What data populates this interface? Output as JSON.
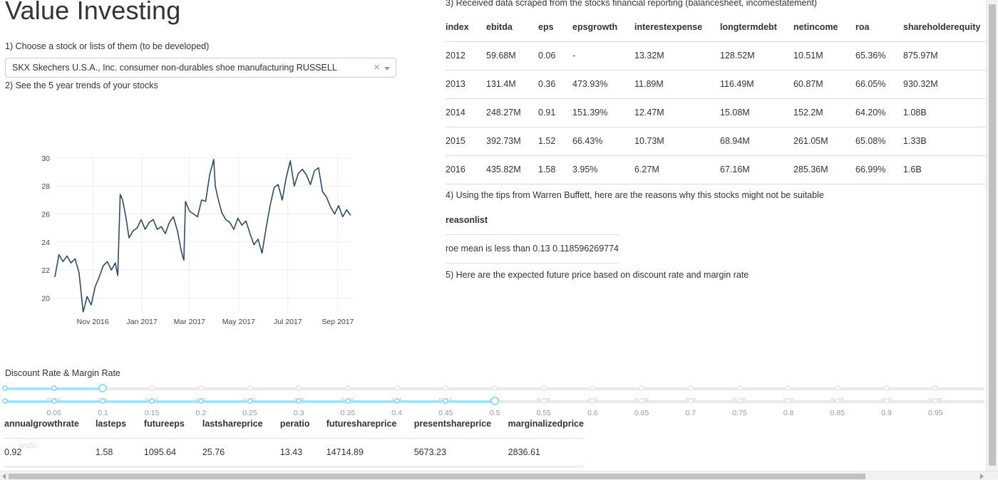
{
  "page": {
    "title": "Value Investing",
    "step1": "1) Choose a stock or lists of them (to be developed)",
    "step2": "2) See the 5 year trends of your stocks",
    "step3": "3) Received data scraped from the stocks financial reporting (balancesheet, incomestatement)",
    "step4": "4) Using the tips from Warren Buffett, here are the reasons why this stocks might not be suitable",
    "step5": "5) Here are the expected future price based on discount rate and margin rate",
    "slider_label": "Discount Rate & Margin Rate",
    "undo_label": "undo"
  },
  "dropdown": {
    "selected": "SKX Skechers U.S.A., Inc. consumer non-durables shoe manufacturing RUSSELL",
    "clear_symbol": "×"
  },
  "chart_data": {
    "type": "line",
    "title": "",
    "xlabel": "",
    "ylabel": "",
    "ylim": [
      19,
      30.3
    ],
    "yticks": [
      20,
      22,
      24,
      26,
      28,
      30
    ],
    "xticks": [
      "Nov 2016",
      "Jan 2017",
      "Mar 2017",
      "May 2017",
      "Jul 2017",
      "Sep 2017"
    ],
    "xtick_dates": [
      "2016-11-01",
      "2017-01-01",
      "2017-03-01",
      "2017-05-01",
      "2017-07-01",
      "2017-09-01"
    ],
    "grid": true,
    "line_color": "#2f4b66",
    "series": [
      {
        "x": [
          "2016-09-15",
          "2016-09-20",
          "2016-09-25",
          "2016-09-30",
          "2016-10-05",
          "2016-10-10",
          "2016-10-15",
          "2016-10-20",
          "2016-10-22",
          "2016-10-25",
          "2016-10-30",
          "2016-11-04",
          "2016-11-09",
          "2016-11-14",
          "2016-11-19",
          "2016-11-24",
          "2016-11-29",
          "2016-12-02",
          "2016-12-05",
          "2016-12-08",
          "2016-12-12",
          "2016-12-16",
          "2016-12-21",
          "2016-12-26",
          "2016-12-31",
          "2017-01-05",
          "2017-01-10",
          "2017-01-15",
          "2017-01-20",
          "2017-01-25",
          "2017-01-30",
          "2017-02-04",
          "2017-02-09",
          "2017-02-14",
          "2017-02-19",
          "2017-02-22",
          "2017-02-24",
          "2017-03-01",
          "2017-03-06",
          "2017-03-11",
          "2017-03-16",
          "2017-03-21",
          "2017-03-26",
          "2017-03-31",
          "2017-04-02",
          "2017-04-05",
          "2017-04-10",
          "2017-04-15",
          "2017-04-20",
          "2017-04-25",
          "2017-04-30",
          "2017-05-05",
          "2017-05-10",
          "2017-05-15",
          "2017-05-20",
          "2017-05-25",
          "2017-05-30",
          "2017-06-04",
          "2017-06-09",
          "2017-06-14",
          "2017-06-19",
          "2017-06-24",
          "2017-06-29",
          "2017-07-04",
          "2017-07-09",
          "2017-07-14",
          "2017-07-19",
          "2017-07-24",
          "2017-07-29",
          "2017-08-03",
          "2017-08-08",
          "2017-08-13",
          "2017-08-18",
          "2017-08-23",
          "2017-08-28",
          "2017-09-02",
          "2017-09-07",
          "2017-09-12",
          "2017-09-17"
        ],
        "y": [
          21.5,
          23.1,
          22.6,
          23.0,
          22.5,
          22.8,
          21.8,
          19.0,
          19.4,
          20.1,
          19.5,
          20.8,
          21.5,
          22.3,
          22.6,
          22.0,
          22.5,
          21.6,
          27.4,
          27.0,
          25.8,
          24.3,
          24.8,
          25.0,
          25.6,
          24.9,
          25.4,
          25.6,
          24.9,
          25.1,
          24.6,
          25.4,
          25.8,
          24.8,
          23.3,
          22.7,
          26.9,
          26.2,
          26.0,
          25.8,
          27.0,
          26.9,
          28.8,
          29.9,
          28.0,
          27.2,
          26.1,
          25.6,
          25.4,
          24.9,
          25.7,
          25.2,
          25.5,
          24.6,
          23.8,
          24.2,
          23.2,
          25.0,
          26.6,
          27.9,
          28.1,
          27.0,
          28.6,
          29.8,
          28.0,
          28.9,
          29.2,
          28.8,
          28.1,
          29.1,
          29.3,
          27.6,
          27.2,
          26.5,
          26.0,
          26.6,
          25.8,
          26.3,
          25.9
        ]
      }
    ]
  },
  "financials": {
    "columns": [
      "index",
      "ebitda",
      "eps",
      "epsgrowth",
      "interestexpense",
      "longtermdebt",
      "netincome",
      "roa",
      "shareholderequity"
    ],
    "rows": [
      [
        "2012",
        "59.68M",
        "0.06",
        "-",
        "13.32M",
        "128.52M",
        "10.51M",
        "65.36%",
        "875.97M"
      ],
      [
        "2013",
        "131.4M",
        "0.36",
        "473.93%",
        "11.89M",
        "116.49M",
        "60.87M",
        "66.05%",
        "930.32M"
      ],
      [
        "2014",
        "248.27M",
        "0.91",
        "151.39%",
        "12.47M",
        "15.08M",
        "152.2M",
        "64.20%",
        "1.08B"
      ],
      [
        "2015",
        "392.73M",
        "1.52",
        "66.43%",
        "10.73M",
        "68.94M",
        "261.05M",
        "65.08%",
        "1.33B"
      ],
      [
        "2016",
        "435.82M",
        "1.58",
        "3.95%",
        "6.27M",
        "67.16M",
        "285.36M",
        "66.99%",
        "1.6B"
      ]
    ]
  },
  "reasons": {
    "header": "reasonlist",
    "items": [
      "roe mean is less than 0.13 0.118596269774"
    ]
  },
  "sliders": {
    "marks": [
      "0.05",
      "0.1",
      "0.15",
      "0.2",
      "0.25",
      "0.3",
      "0.35",
      "0.4",
      "0.45",
      "0.5",
      "0.55",
      "0.6",
      "0.65",
      "0.7",
      "0.75",
      "0.8",
      "0.85",
      "0.9",
      "0.95"
    ],
    "discount_rate": 0.1,
    "margin_rate": 0.5
  },
  "results": {
    "columns": [
      "annualgrowthrate",
      "lasteps",
      "futureeps",
      "lastshareprice",
      "peratio",
      "futureshareprice",
      "presentshareprice",
      "marginalizedprice"
    ],
    "row": [
      "0.92",
      "1.58",
      "1095.64",
      "25.76",
      "13.43",
      "14714.89",
      "5673.23",
      "2836.61"
    ]
  },
  "colors": {
    "slider_fill": "#abe2fb",
    "slider_handle": "#96dbfa",
    "slider_track": "#e9e9e9"
  }
}
